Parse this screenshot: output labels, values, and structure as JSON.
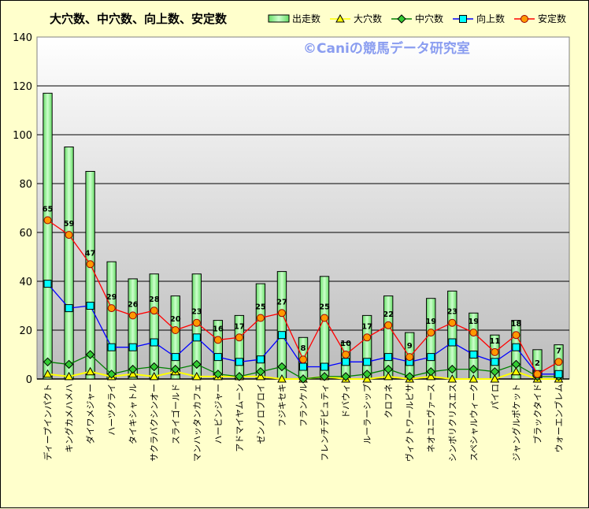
{
  "chart_data": {
    "type": "bar+line",
    "title": "大穴数、中穴数、向上数、安定数",
    "watermark": "©Caniの競馬データ研究室",
    "ylim": [
      0,
      140
    ],
    "yticks": [
      0,
      20,
      40,
      60,
      80,
      100,
      120,
      140
    ],
    "grid": true,
    "legend_position": "top-right",
    "categories": [
      "ディープインパクト",
      "キングカメハメハ",
      "ダイワメジャー",
      "ハーツクライ",
      "タイキシャトル",
      "サクラバクシンオー",
      "スライゴールド",
      "マンハッタンカフェ",
      "ハービンジャー",
      "アドマイヤムーン",
      "ゼンノロブロイ",
      "フジキセキ",
      "フランケル",
      "フレンチデピュティ",
      "ドバウィ",
      "ルーラーシップ",
      "クロフネ",
      "ヴィクトワールピサ",
      "ネオユニヴァース",
      "シンボリクリスエス",
      "スペシャルウィーク",
      "パイロ",
      "ジャングルポケット",
      "ブラックタイド",
      "ウォーエンブレム"
    ],
    "series": [
      {
        "name": "出走数",
        "kind": "bar",
        "color": "#99ff99",
        "values": [
          117,
          95,
          85,
          48,
          41,
          43,
          34,
          43,
          24,
          26,
          39,
          44,
          17,
          42,
          15,
          26,
          34,
          19,
          33,
          36,
          27,
          18,
          24,
          12,
          14
        ]
      },
      {
        "name": "大穴数",
        "kind": "line",
        "color": "#ffff00",
        "marker": "triangle",
        "values": [
          2,
          1,
          3,
          1,
          2,
          1,
          3,
          1,
          1,
          1,
          1,
          0,
          0,
          1,
          0,
          0,
          1,
          0,
          1,
          0,
          0,
          0,
          3,
          0,
          0
        ]
      },
      {
        "name": "中穴数",
        "kind": "line",
        "color": "#008000",
        "marker": "diamond",
        "values": [
          7,
          6,
          10,
          2,
          4,
          5,
          4,
          6,
          2,
          1,
          3,
          5,
          0,
          1,
          1,
          2,
          4,
          1,
          3,
          4,
          4,
          3,
          6,
          1,
          1
        ]
      },
      {
        "name": "向上数",
        "kind": "line",
        "color": "#0000ff",
        "marker": "square",
        "values": [
          39,
          29,
          30,
          13,
          13,
          15,
          9,
          17,
          9,
          7,
          8,
          18,
          5,
          5,
          7,
          7,
          9,
          7,
          9,
          15,
          10,
          7,
          13,
          2,
          2
        ]
      },
      {
        "name": "安定数",
        "kind": "line",
        "color": "#ff0000",
        "marker": "circle",
        "labeled": true,
        "values": [
          65,
          59,
          47,
          29,
          26,
          28,
          20,
          23,
          16,
          17,
          25,
          27,
          8,
          25,
          10,
          17,
          22,
          9,
          19,
          23,
          19,
          11,
          18,
          2,
          7
        ]
      }
    ]
  }
}
